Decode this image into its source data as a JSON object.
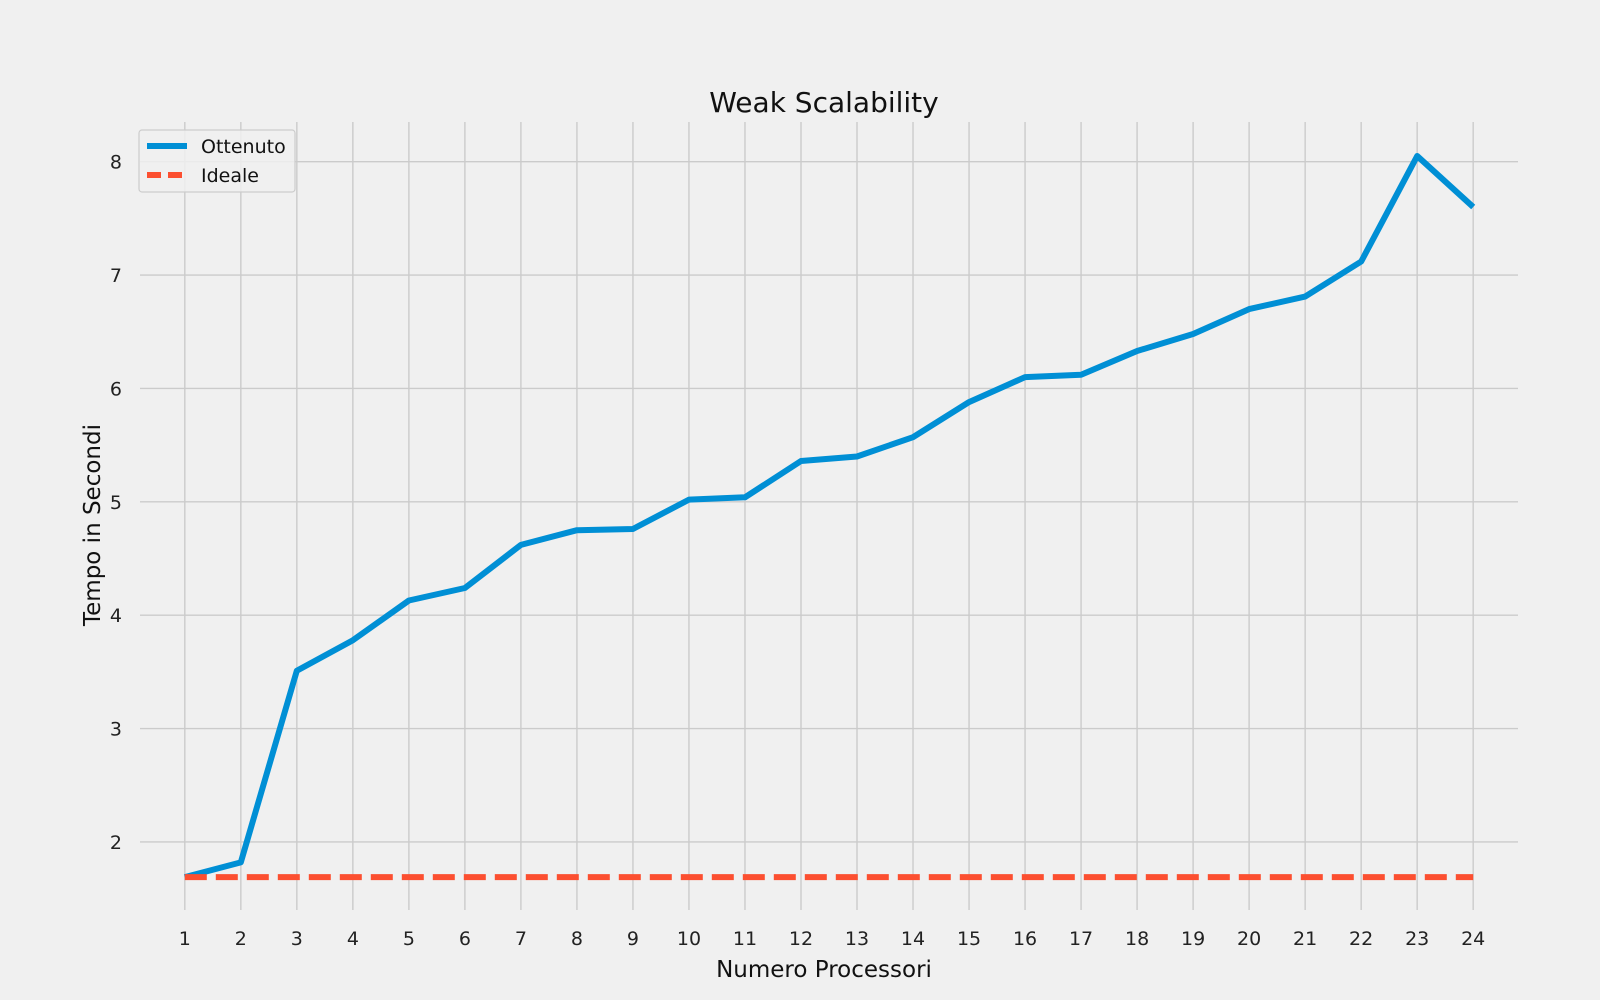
{
  "chart_data": {
    "type": "line",
    "title": "Weak Scalability",
    "xlabel": "Numero Processori",
    "ylabel": "Tempo in Secondi",
    "x": [
      1,
      2,
      3,
      4,
      5,
      6,
      7,
      8,
      9,
      10,
      11,
      12,
      13,
      14,
      15,
      16,
      17,
      18,
      19,
      20,
      21,
      22,
      23,
      24
    ],
    "xticks": [
      "1",
      "2",
      "3",
      "4",
      "5",
      "6",
      "7",
      "8",
      "9",
      "10",
      "11",
      "12",
      "13",
      "14",
      "15",
      "16",
      "17",
      "18",
      "19",
      "20",
      "21",
      "22",
      "23",
      "24"
    ],
    "yticks": [
      2,
      3,
      4,
      5,
      6,
      7,
      8
    ],
    "xlim": [
      0.2,
      24.8
    ],
    "ylim": [
      1.4,
      8.35
    ],
    "grid": true,
    "legend_position": "upper-left",
    "series": [
      {
        "name": "Ottenuto",
        "style": "solid",
        "color": "#008fd5",
        "values": [
          1.69,
          1.82,
          3.51,
          3.78,
          4.13,
          4.24,
          4.62,
          4.75,
          4.76,
          5.02,
          5.04,
          5.36,
          5.4,
          5.57,
          5.88,
          6.1,
          6.12,
          6.33,
          6.48,
          6.7,
          6.81,
          7.12,
          8.05,
          7.6
        ]
      },
      {
        "name": "Ideale",
        "style": "dashed",
        "color": "#fc4f30",
        "values": [
          1.69,
          1.69,
          1.69,
          1.69,
          1.69,
          1.69,
          1.69,
          1.69,
          1.69,
          1.69,
          1.69,
          1.69,
          1.69,
          1.69,
          1.69,
          1.69,
          1.69,
          1.69,
          1.69,
          1.69,
          1.69,
          1.69,
          1.69,
          1.69
        ]
      }
    ]
  }
}
